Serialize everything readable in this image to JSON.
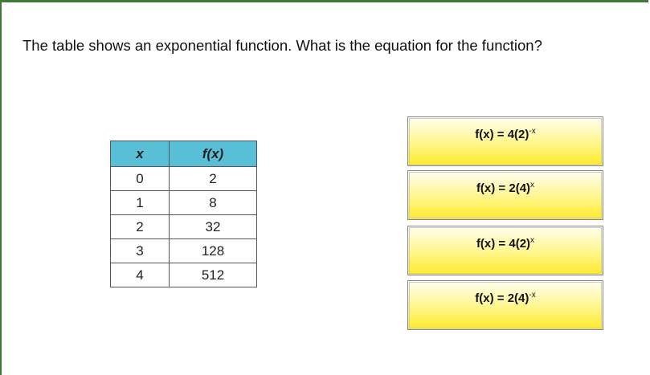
{
  "question": "The table shows an exponential function. What is the equation for the function?",
  "table": {
    "headers": [
      "x",
      "f(x)"
    ],
    "rows": [
      [
        "0",
        "2"
      ],
      [
        "1",
        "8"
      ],
      [
        "2",
        "32"
      ],
      [
        "3",
        "128"
      ],
      [
        "4",
        "512"
      ]
    ]
  },
  "options": [
    {
      "base": "f(x) = 4(2)",
      "exp": "-x"
    },
    {
      "base": "f(x) = 2(4)",
      "exp": "x"
    },
    {
      "base": "f(x) = 4(2)",
      "exp": "x"
    },
    {
      "base": "f(x) = 2(4)",
      "exp": "-x"
    }
  ],
  "colors": {
    "border": "#3f7a3a",
    "header": "#58bfd6",
    "option": "#fff580"
  }
}
